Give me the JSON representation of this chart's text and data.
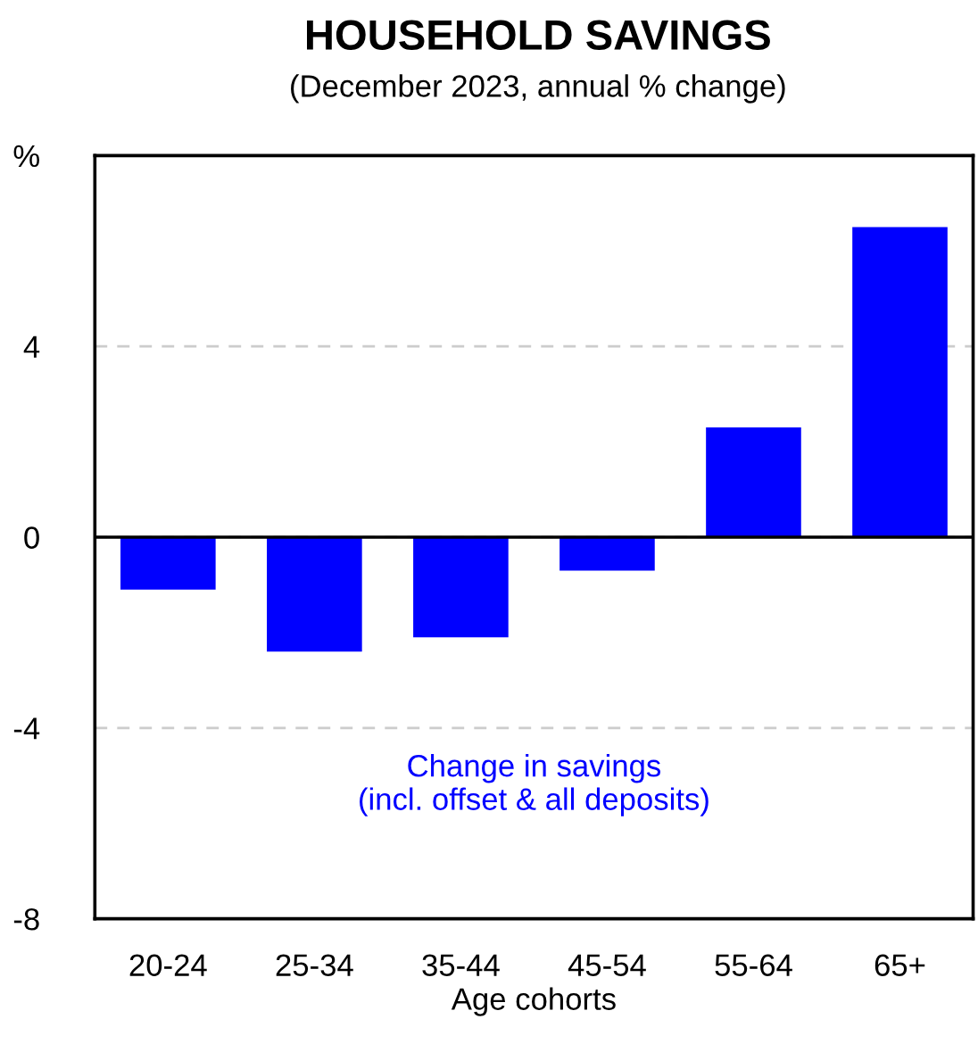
{
  "chart_data": {
    "type": "bar",
    "title": "HOUSEHOLD SAVINGS",
    "subtitle": "(December 2023, annual % change)",
    "xlabel": "Age cohorts",
    "categories": [
      "20-24",
      "25-34",
      "35-44",
      "45-54",
      "55-64",
      "65+"
    ],
    "series": [
      {
        "name": "Change in savings\n(incl. offset & all deposits)",
        "color": "#0000ff",
        "values": [
          -1.1,
          -2.4,
          -2.1,
          -0.7,
          2.3,
          6.5
        ]
      }
    ],
    "ylim": [
      -8,
      8
    ],
    "yticks": [
      -8,
      -4,
      0,
      4,
      {
        "value": 8,
        "label": "%"
      }
    ],
    "grid": "y",
    "ref_lines": [
      {
        "axis": "y",
        "value": 0,
        "color": "#000000"
      }
    ]
  }
}
